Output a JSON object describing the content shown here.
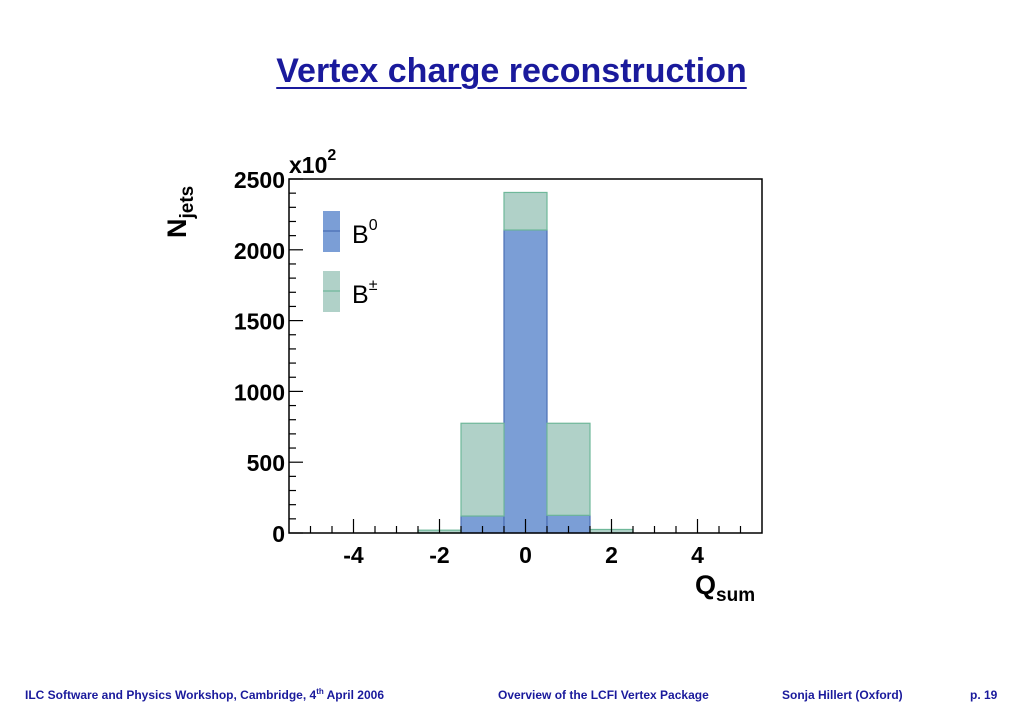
{
  "slide": {
    "title": "Vertex charge reconstruction"
  },
  "footer": {
    "workshop_pre": "ILC Software and Physics Workshop, Cambridge, 4",
    "workshop_sup": "th",
    "workshop_post": " April 2006",
    "overview": "Overview of the LCFI Vertex Package",
    "author": "Sonja Hillert (Oxford)",
    "page": "p. 19"
  },
  "chart_data": {
    "type": "bar",
    "subtype": "stacked-histogram",
    "multiplier_base": "x10",
    "multiplier_exp": "2",
    "ylabel_main": "N",
    "ylabel_sub": "jets",
    "xlabel_main": "Q",
    "xlabel_sub": "sum",
    "xlim": [
      -5.5,
      5.5
    ],
    "ylim": [
      0,
      2500
    ],
    "x_ticks": [
      -4,
      -2,
      0,
      2,
      4
    ],
    "x_tick_labels": [
      "-4",
      "-2",
      "0",
      "2",
      "4"
    ],
    "y_ticks": [
      0,
      500,
      1000,
      1500,
      2000,
      2500
    ],
    "y_tick_labels": [
      "0",
      "500",
      "1000",
      "1500",
      "2000",
      "2500"
    ],
    "bin_edges": [
      -5.5,
      -4.5,
      -3.5,
      -2.5,
      -1.5,
      -0.5,
      0.5,
      1.5,
      2.5,
      3.5,
      4.5,
      5.5
    ],
    "bin_centers": [
      -5,
      -4,
      -3,
      -2,
      -1,
      0,
      1,
      2,
      3,
      4,
      5
    ],
    "series": [
      {
        "name": "B",
        "name_sup": "0",
        "color": "#7b9ed6",
        "edge": "#4a6fb5",
        "values": [
          0,
          0,
          0,
          0,
          120,
          2140,
          125,
          0,
          0,
          0,
          0
        ]
      },
      {
        "name": "B",
        "name_sup": "±",
        "color": "#b0d1c8",
        "edge": "#6fb89a",
        "values": [
          0,
          0,
          0,
          20,
          655,
          265,
          650,
          25,
          0,
          0,
          0
        ]
      }
    ],
    "legend": "top-left",
    "grid": false
  }
}
